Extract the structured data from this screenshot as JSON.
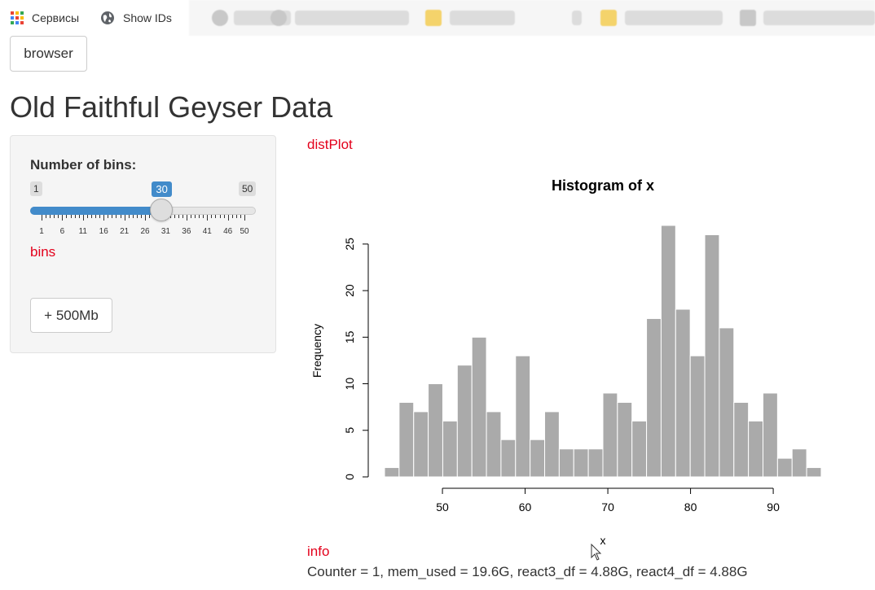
{
  "bookmarks": {
    "items": [
      {
        "label": "Сервисы",
        "icon": "apps-grid-icon"
      },
      {
        "label": "Show IDs",
        "icon": "globe-icon"
      }
    ],
    "apps_colors": [
      "#ea4335",
      "#fbbc05",
      "#34a853",
      "#4285f4",
      "#ea4335",
      "#fbbc05",
      "#34a853",
      "#4285f4",
      "#ea4335"
    ]
  },
  "toolbar": {
    "browser_label": "browser"
  },
  "page": {
    "title": "Old Faithful Geyser Data"
  },
  "sidebar": {
    "slider_label": "Number of bins:",
    "slider": {
      "min": 1,
      "max": 50,
      "value": 30,
      "min_label": "1",
      "max_label": "50",
      "value_label": "30"
    },
    "tick_labels": [
      "1",
      "6",
      "11",
      "16",
      "21",
      "26",
      "31",
      "36",
      "41",
      "46",
      "50"
    ],
    "bins_output_id": "bins",
    "button_label": "+ 500Mb"
  },
  "main": {
    "plot_output_id": "distPlot",
    "info_output_id": "info",
    "info_text": "Counter = 1, mem_used = 19.6G, react3_df = 4.88G, react4_df = 4.88G"
  },
  "chart_data": {
    "type": "bar",
    "title": "Histogram of x",
    "xlabel": "x",
    "ylabel": "Frequency",
    "bin_width": 1.76,
    "bin_start": 43,
    "values": [
      1,
      8,
      7,
      10,
      6,
      12,
      15,
      7,
      4,
      13,
      4,
      7,
      3,
      3,
      3,
      9,
      8,
      6,
      17,
      27,
      18,
      13,
      26,
      16,
      8,
      6,
      9,
      2,
      3,
      1
    ],
    "x_ticks": [
      50,
      60,
      70,
      80,
      90
    ],
    "y_ticks": [
      0,
      5,
      10,
      15,
      20,
      25
    ],
    "xlim": [
      43,
      96
    ],
    "ylim": [
      0,
      27
    ],
    "bar_color": "#aaaaaa",
    "grid": false
  }
}
